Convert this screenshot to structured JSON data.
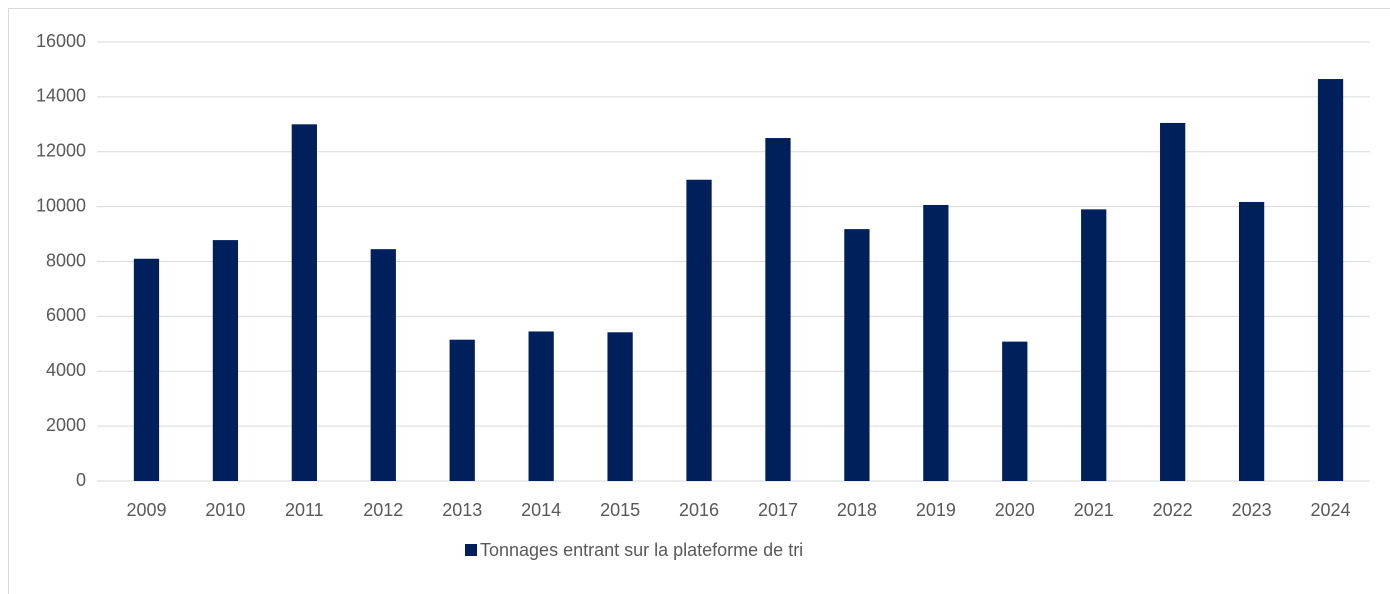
{
  "chart_data": {
    "type": "bar",
    "categories": [
      "2009",
      "2010",
      "2011",
      "2012",
      "2013",
      "2014",
      "2015",
      "2016",
      "2017",
      "2018",
      "2019",
      "2020",
      "2021",
      "2022",
      "2023",
      "2024"
    ],
    "series": [
      {
        "name": "Tonnages entrant sur la plateforme de tri",
        "color": "#00205b",
        "values": [
          8100,
          8780,
          13000,
          8450,
          5150,
          5450,
          5420,
          10980,
          12500,
          9180,
          10060,
          5080,
          9900,
          13050,
          10170,
          14650
        ]
      }
    ],
    "ylim": [
      0,
      16000
    ],
    "yticks": [
      0,
      2000,
      4000,
      6000,
      8000,
      10000,
      12000,
      14000,
      16000
    ],
    "grid": true,
    "legend": "bottom"
  }
}
